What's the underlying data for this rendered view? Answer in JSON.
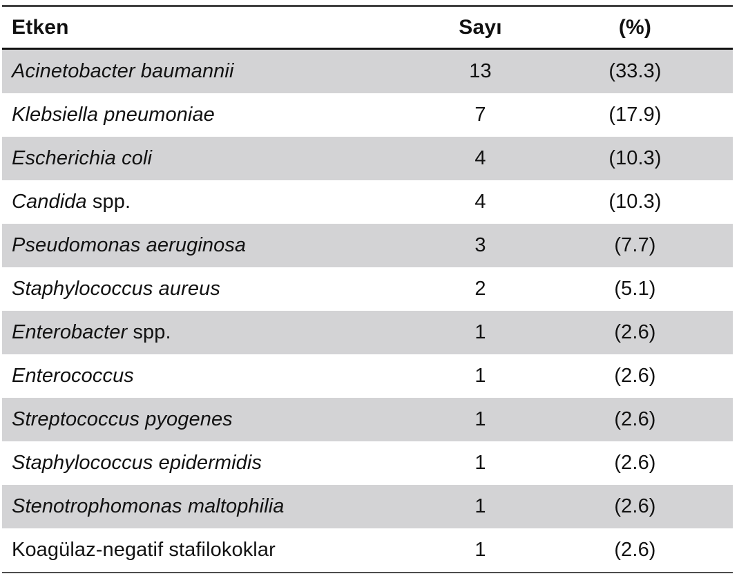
{
  "table": {
    "columns": [
      {
        "key": "agent",
        "label": "Etken"
      },
      {
        "key": "count",
        "label": "Sayı"
      },
      {
        "key": "percent",
        "label": "(%)"
      }
    ],
    "rows": [
      {
        "agent_italic": "Acinetobacter baumannii",
        "agent_plain": "",
        "count": "13",
        "percent": "(33.3)"
      },
      {
        "agent_italic": "Klebsiella pneumoniae",
        "agent_plain": "",
        "count": "7",
        "percent": "(17.9)"
      },
      {
        "agent_italic": "Escherichia coli",
        "agent_plain": "",
        "count": "4",
        "percent": "(10.3)"
      },
      {
        "agent_italic": "Candida",
        "agent_plain": " spp.",
        "count": "4",
        "percent": "(10.3)"
      },
      {
        "agent_italic": "Pseudomonas aeruginosa",
        "agent_plain": "",
        "count": "3",
        "percent": "(7.7)"
      },
      {
        "agent_italic": "Staphylococcus aureus",
        "agent_plain": "",
        "count": "2",
        "percent": "(5.1)"
      },
      {
        "agent_italic": "Enterobacter",
        "agent_plain": " spp.",
        "count": "1",
        "percent": "(2.6)"
      },
      {
        "agent_italic": "Enterococcus",
        "agent_plain": "",
        "count": "1",
        "percent": "(2.6)"
      },
      {
        "agent_italic": "Streptococcus pyogenes",
        "agent_plain": "",
        "count": "1",
        "percent": "(2.6)"
      },
      {
        "agent_italic": "Staphylococcus epidermidis",
        "agent_plain": "",
        "count": "1",
        "percent": "(2.6)"
      },
      {
        "agent_italic": "Stenotrophomonas maltophilia",
        "agent_plain": "",
        "count": "1",
        "percent": "(2.6)"
      },
      {
        "agent_italic": "",
        "agent_plain": "Koagülaz-negatif stafilokoklar",
        "count": "1",
        "percent": "(2.6)"
      }
    ],
    "colors": {
      "shaded_row": "#d3d3d5",
      "plain_row": "#ffffff",
      "rule_top": "#3f3f3f",
      "rule_header": "#121212",
      "rule_bottom": "#4d4d4d",
      "text": "#121212"
    }
  }
}
